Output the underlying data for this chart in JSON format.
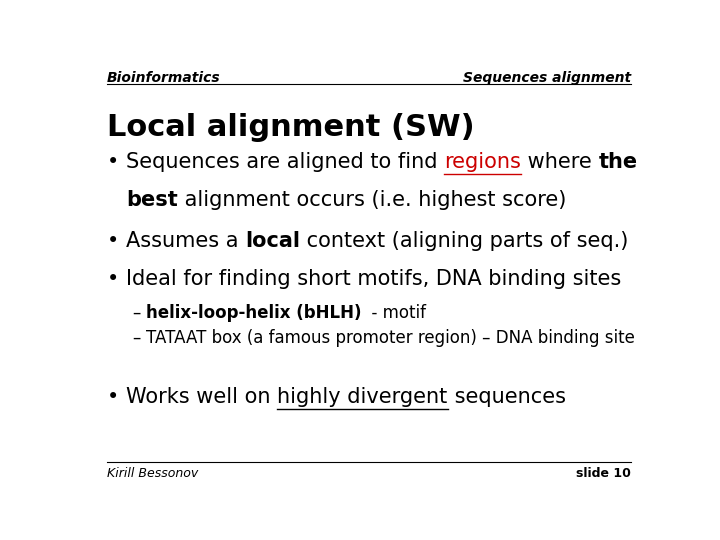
{
  "bg_color": "#ffffff",
  "header_left": "Bioinformatics",
  "header_right": "Sequences alignment",
  "title": "Local alignment (SW)",
  "footer_left": "Kirill Bessonov",
  "footer_right": "slide 10",
  "line_color": "#000000",
  "header_fontsize": 10,
  "title_fontsize": 22,
  "bullet_fontsize": 15,
  "sub_bullet_fontsize": 12,
  "footer_fontsize": 9
}
